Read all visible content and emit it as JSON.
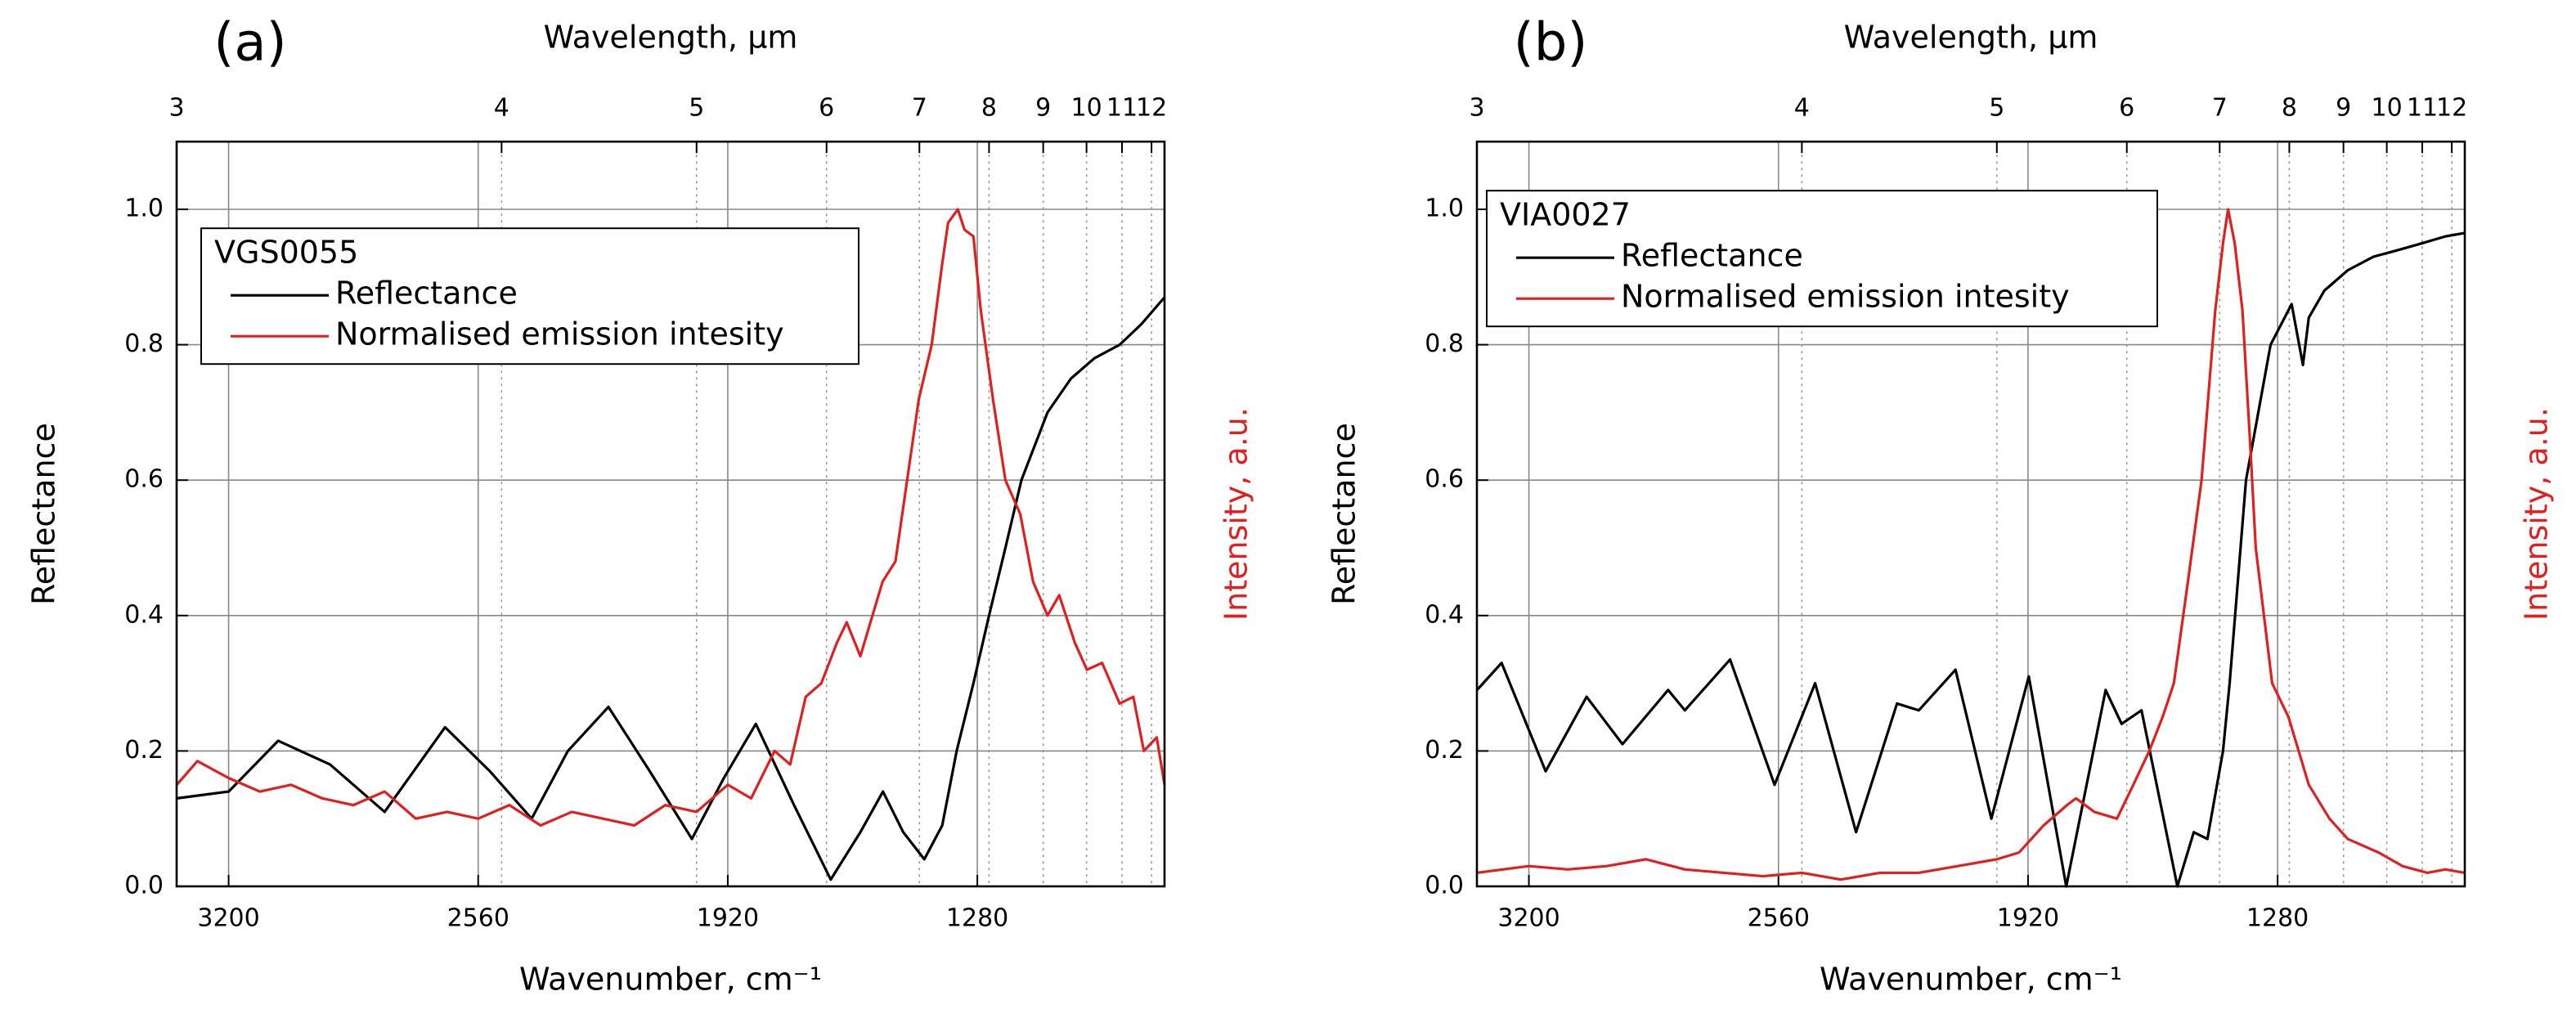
{
  "chart_data": [
    {
      "type": "line",
      "panel": "(a)",
      "x_label": "Wavenumber, cm⁻¹",
      "x2_label": "Wavelength, μm",
      "y_label": "Reflectance",
      "y2_label": "Intensity, a.u.",
      "y2_color": "#e02020",
      "xlim": [
        3333.3,
        800
      ],
      "xticks": [
        3200,
        2560,
        1920,
        1280
      ],
      "x2ticks": [
        {
          "value": 3333.33,
          "label": "3"
        },
        {
          "value": 2500,
          "label": "4"
        },
        {
          "value": 2000,
          "label": "5"
        },
        {
          "value": 1666.67,
          "label": "6"
        },
        {
          "value": 1428.57,
          "label": "7"
        },
        {
          "value": 1250,
          "label": "8"
        },
        {
          "value": 1111.11,
          "label": "9"
        },
        {
          "value": 1000,
          "label": "10"
        },
        {
          "value": 909.09,
          "label": "11"
        },
        {
          "value": 833.33,
          "label": "12"
        }
      ],
      "ylim": [
        0,
        1.1
      ],
      "yticks": [
        {
          "value": 0,
          "label": "0.0"
        },
        0.2,
        0.4,
        0.6,
        0.8,
        {
          "value": 1,
          "label": "1.0"
        }
      ],
      "grid": true,
      "legend": "upper left",
      "legend_title": "VGS0055",
      "series": [
        {
          "name": "Reflectance",
          "color": "#000000",
          "x": [
            3333,
            3200,
            3073,
            2940,
            2800,
            2645,
            2530,
            2423,
            2330,
            2226,
            2120,
            2012,
            1930,
            1848,
            1750,
            1656,
            1580,
            1522,
            1470,
            1416,
            1370,
            1333,
            1290,
            1250,
            1208,
            1167,
            1100,
            1040,
            980,
            915,
            860,
            800
          ],
          "values": [
            0.13,
            0.14,
            0.215,
            0.18,
            0.11,
            0.235,
            0.17,
            0.1,
            0.2,
            0.265,
            0.17,
            0.07,
            0.16,
            0.24,
            0.12,
            0.01,
            0.08,
            0.14,
            0.08,
            0.04,
            0.09,
            0.2,
            0.3,
            0.4,
            0.5,
            0.6,
            0.7,
            0.75,
            0.78,
            0.8,
            0.83,
            0.87
          ]
        },
        {
          "name": "Normalised emission intesity",
          "color": "#e02020",
          "x": [
            3333,
            3280,
            3200,
            3120,
            3040,
            2960,
            2880,
            2800,
            2720,
            2640,
            2560,
            2480,
            2400,
            2320,
            2240,
            2160,
            2080,
            2000,
            1920,
            1860,
            1800,
            1760,
            1720,
            1680,
            1640,
            1615,
            1580,
            1523,
            1490,
            1460,
            1430,
            1397,
            1370,
            1355,
            1330,
            1313,
            1290,
            1271,
            1240,
            1208,
            1170,
            1137,
            1100,
            1070,
            1030,
            999,
            960,
            915,
            880,
            853,
            820,
            800
          ],
          "values": [
            0.15,
            0.185,
            0.16,
            0.14,
            0.15,
            0.13,
            0.12,
            0.14,
            0.1,
            0.11,
            0.1,
            0.12,
            0.09,
            0.11,
            0.1,
            0.09,
            0.12,
            0.11,
            0.15,
            0.13,
            0.2,
            0.18,
            0.28,
            0.3,
            0.36,
            0.39,
            0.34,
            0.45,
            0.48,
            0.6,
            0.72,
            0.8,
            0.92,
            0.98,
            1.0,
            0.97,
            0.96,
            0.85,
            0.72,
            0.6,
            0.55,
            0.45,
            0.4,
            0.43,
            0.36,
            0.32,
            0.33,
            0.27,
            0.28,
            0.2,
            0.22,
            0.15
          ]
        }
      ]
    },
    {
      "type": "line",
      "panel": "(b)",
      "x_label": "Wavenumber, cm⁻¹",
      "x2_label": "Wavelength, μm",
      "y_label": "Reflectance",
      "y2_label": "Intensity, a.u.",
      "y2_color": "#e02020",
      "xlim": [
        3333.3,
        800
      ],
      "xticks": [
        3200,
        2560,
        1920,
        1280
      ],
      "x2ticks": [
        {
          "value": 3333.33,
          "label": "3"
        },
        {
          "value": 2500,
          "label": "4"
        },
        {
          "value": 2000,
          "label": "5"
        },
        {
          "value": 1666.67,
          "label": "6"
        },
        {
          "value": 1428.57,
          "label": "7"
        },
        {
          "value": 1250,
          "label": "8"
        },
        {
          "value": 1111.11,
          "label": "9"
        },
        {
          "value": 1000,
          "label": "10"
        },
        {
          "value": 909.09,
          "label": "11"
        },
        {
          "value": 833.33,
          "label": "12"
        }
      ],
      "ylim": [
        0,
        1.1
      ],
      "yticks": [
        {
          "value": 0,
          "label": "0.0"
        },
        0.2,
        0.4,
        0.6,
        0.8,
        {
          "value": 1,
          "label": "1.0"
        }
      ],
      "grid": true,
      "legend": "upper left",
      "legend_title": "VIA0027",
      "series": [
        {
          "name": "Reflectance",
          "color": "#000000",
          "x": [
            3333,
            3270,
            3157,
            3052,
            2960,
            2843,
            2800,
            2684,
            2570,
            2466,
            2361,
            2256,
            2200,
            2106,
            2014,
            1918,
            1822,
            1721,
            1680,
            1629,
            1537,
            1495,
            1460,
            1420,
            1403,
            1361,
            1298,
            1244,
            1215,
            1200,
            1160,
            1100,
            1034,
            970,
            909,
            850,
            800
          ],
          "values": [
            0.29,
            0.33,
            0.17,
            0.28,
            0.21,
            0.29,
            0.26,
            0.335,
            0.15,
            0.3,
            0.08,
            0.27,
            0.26,
            0.32,
            0.1,
            0.31,
            0.0,
            0.29,
            0.24,
            0.26,
            0.0,
            0.08,
            0.07,
            0.2,
            0.3,
            0.6,
            0.8,
            0.86,
            0.77,
            0.84,
            0.88,
            0.91,
            0.93,
            0.94,
            0.95,
            0.96,
            0.965
          ]
        },
        {
          "name": "Normalised emission intesity",
          "color": "#e02020",
          "x": [
            3333,
            3200,
            3100,
            3000,
            2900,
            2800,
            2700,
            2600,
            2500,
            2400,
            2300,
            2200,
            2100,
            2000,
            1943,
            1880,
            1820,
            1797,
            1750,
            1692,
            1650,
            1609,
            1575,
            1546,
            1510,
            1475,
            1440,
            1420,
            1407,
            1390,
            1370,
            1350,
            1336,
            1294,
            1252,
            1200,
            1147,
            1100,
            1021,
            960,
            896,
            850,
            800
          ],
          "values": [
            0.02,
            0.03,
            0.025,
            0.03,
            0.04,
            0.025,
            0.02,
            0.015,
            0.02,
            0.01,
            0.02,
            0.02,
            0.03,
            0.04,
            0.05,
            0.09,
            0.12,
            0.13,
            0.11,
            0.1,
            0.15,
            0.2,
            0.25,
            0.3,
            0.45,
            0.6,
            0.85,
            0.95,
            1.0,
            0.95,
            0.85,
            0.65,
            0.5,
            0.3,
            0.25,
            0.15,
            0.1,
            0.07,
            0.05,
            0.03,
            0.02,
            0.025,
            0.02
          ]
        }
      ]
    }
  ]
}
